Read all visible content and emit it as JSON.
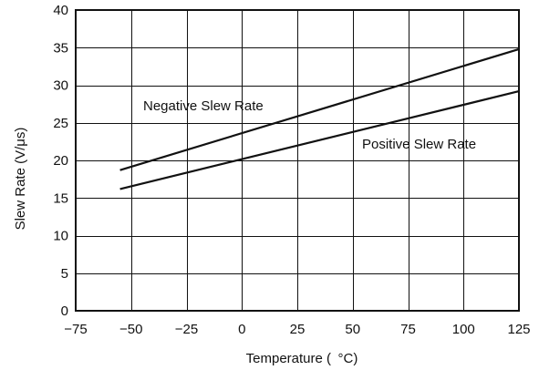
{
  "chart_data": {
    "type": "line",
    "title": "",
    "xlabel": "Temperature ( °C)",
    "ylabel": "Slew Rate (V/μs)",
    "xlim": [
      -75,
      125
    ],
    "ylim": [
      0,
      40
    ],
    "x_ticks": [
      -75,
      -50,
      -25,
      0,
      25,
      50,
      75,
      100,
      125
    ],
    "y_ticks": [
      0,
      5,
      10,
      15,
      20,
      25,
      30,
      35,
      40
    ],
    "x_tick_labels": [
      "−75",
      "−50",
      "−25",
      "0",
      "25",
      "50",
      "75",
      "100",
      "125"
    ],
    "y_tick_labels": [
      "0",
      "5",
      "10",
      "15",
      "20",
      "25",
      "30",
      "35",
      "40"
    ],
    "grid": true,
    "series": [
      {
        "name": "Negative Slew Rate",
        "x": [
          -55,
          125
        ],
        "y": [
          18.7,
          34.8
        ]
      },
      {
        "name": "Positive Slew Rate",
        "x": [
          -55,
          125
        ],
        "y": [
          16.2,
          29.2
        ]
      }
    ]
  },
  "colors": {
    "line": "#111111",
    "grid": "#111111",
    "axis": "#111111"
  }
}
